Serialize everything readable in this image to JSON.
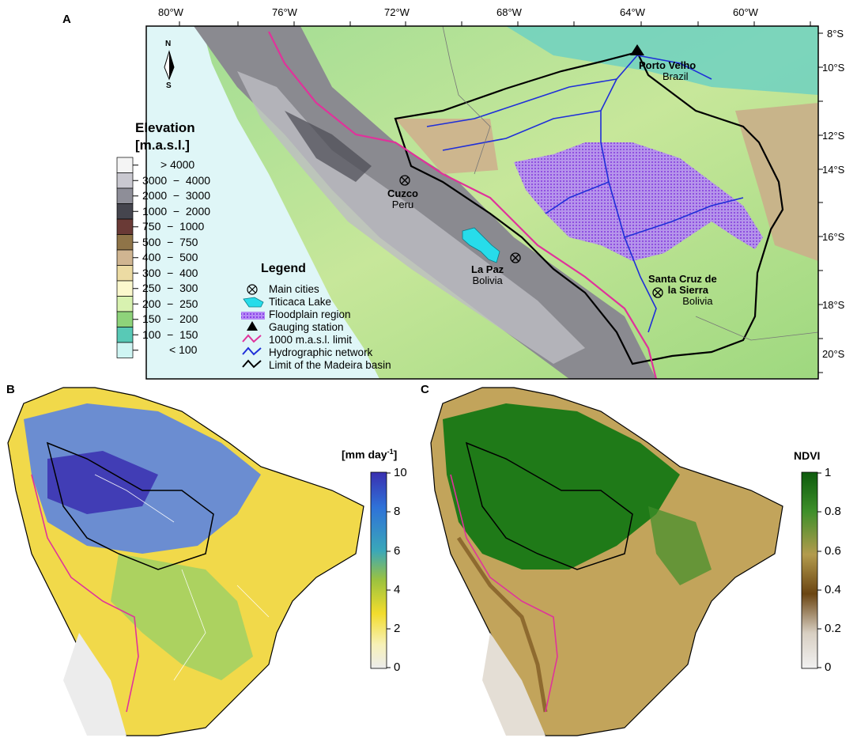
{
  "panels": {
    "a": "A",
    "b": "B",
    "c": "C"
  },
  "panel_a": {
    "lon_ticks": [
      "80°W",
      "76°W",
      "72°W",
      "68°W",
      "64°W",
      "60°W"
    ],
    "lat_ticks": [
      "8°S",
      "10°S",
      "12°S",
      "14°S",
      "16°S",
      "18°S",
      "20°S"
    ],
    "north_arrow": {
      "n": "N",
      "s": "S"
    },
    "elevation_legend": {
      "title_line1": "Elevation",
      "title_line2": "[m.a.s.l.]",
      "classes": [
        {
          "label": "> 4000",
          "color": "#f4f4f4"
        },
        {
          "label": "3000  −  4000",
          "color": "#c9c8d0"
        },
        {
          "label": "2000  −  3000",
          "color": "#8e8e98"
        },
        {
          "label": "1000  −  2000",
          "color": "#45454e"
        },
        {
          "label": "750  −  1000",
          "color": "#6a3a36"
        },
        {
          "label": "500  −  750",
          "color": "#8f7448"
        },
        {
          "label": "400  −  500",
          "color": "#d0b591"
        },
        {
          "label": "300  −  400",
          "color": "#ecdba3"
        },
        {
          "label": "250  −  300",
          "color": "#fbf8cd"
        },
        {
          "label": "200  −  250",
          "color": "#d8f2b0"
        },
        {
          "label": "150  −  200",
          "color": "#8ed37a"
        },
        {
          "label": "100  −  150",
          "color": "#58c9b6"
        },
        {
          "label": "< 100",
          "color": "#cff5f3"
        }
      ]
    },
    "legend": {
      "title": "Legend",
      "items": [
        {
          "label": "Main cities",
          "icon": "circled-x-icon"
        },
        {
          "label": "Titicaca Lake",
          "icon": "lake-icon"
        },
        {
          "label": "Floodplain region",
          "icon": "floodplain-icon"
        },
        {
          "label": "Gauging station",
          "icon": "triangle-icon"
        },
        {
          "label": "1000 m.a.s.l. limit",
          "icon": "magenta-line-icon"
        },
        {
          "label": "Hydrographic network",
          "icon": "blue-line-icon"
        },
        {
          "label": "Limit of the Madeira basin",
          "icon": "black-line-icon"
        }
      ]
    },
    "cities": [
      {
        "name": "Porto Velho",
        "country": "Brazil"
      },
      {
        "name": "Cuzco",
        "country": "Peru"
      },
      {
        "name": "La Paz",
        "country": "Bolivia"
      },
      {
        "name": "Santa Cruz de",
        "name2": "la Sierra",
        "country": "Bolivia"
      }
    ]
  },
  "panel_b": {
    "colorbar_title": "mm day",
    "colorbar_exponent": "-1",
    "ticks": [
      "10",
      "8",
      "6",
      "4",
      "2",
      "0"
    ],
    "colors": [
      "#3a2fb0",
      "#2f72d8",
      "#3aa7b9",
      "#9cc23f",
      "#f2dc2d",
      "#f7f1b8",
      "#ececec"
    ]
  },
  "panel_c": {
    "colorbar_title": "NDVI",
    "ticks": [
      "1",
      "0.8",
      "0.6",
      "0.4",
      "0.2",
      "0"
    ],
    "colors": [
      "#0d5a0d",
      "#3e8f2a",
      "#b39b4d",
      "#6b4512",
      "#d8cfc2",
      "#f1f1f1"
    ]
  }
}
